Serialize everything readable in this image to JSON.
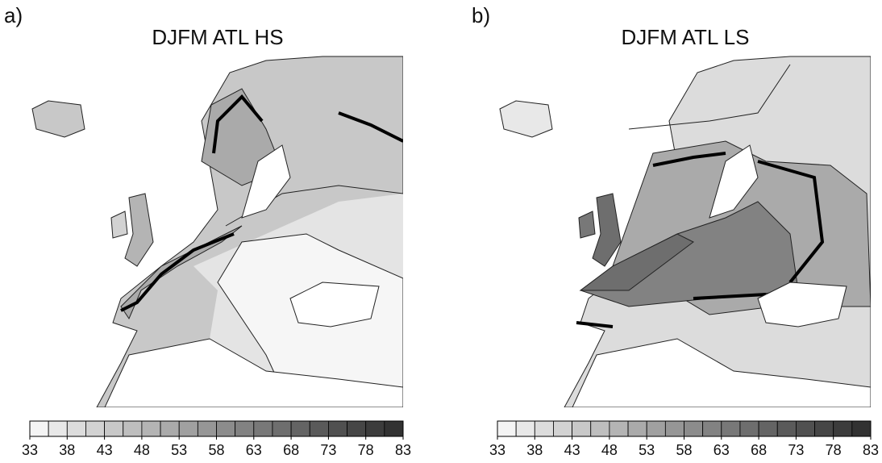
{
  "panels": [
    {
      "label": "a)",
      "title": "DJFM ATL HS"
    },
    {
      "label": "b)",
      "title": "DJFM ATL LS"
    }
  ],
  "colorbar": {
    "ticks": [
      33,
      38,
      43,
      48,
      53,
      58,
      63,
      68,
      73,
      78,
      83
    ],
    "colors": [
      "#f4f4f4",
      "#e8e8e8",
      "#dcdcdc",
      "#d2d2d2",
      "#c8c8c8",
      "#bebebe",
      "#b4b4b4",
      "#aaaaaa",
      "#a0a0a0",
      "#969696",
      "#8c8c8c",
      "#828282",
      "#787878",
      "#6e6e6e",
      "#646464",
      "#5a5a5a",
      "#505050",
      "#464646",
      "#3c3c3c",
      "#323232"
    ]
  }
}
